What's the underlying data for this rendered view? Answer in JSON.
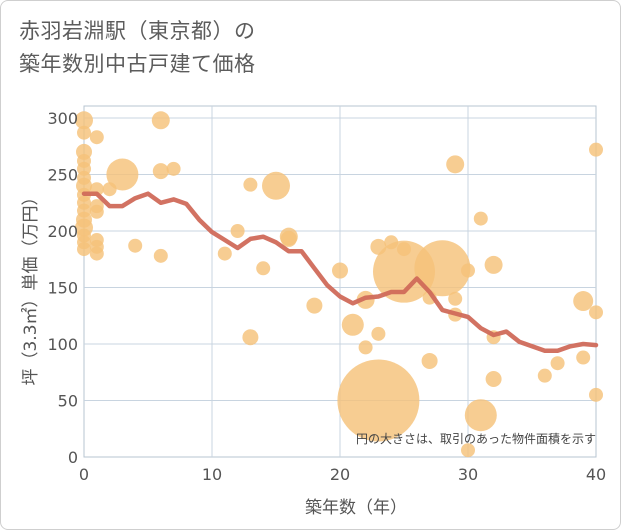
{
  "title": {
    "line1": "赤羽岩淵駅（東京都）の",
    "line2": "築年数別中古戸建て価格"
  },
  "colors": {
    "bubble": "#f5c27a",
    "line": "#d06a5a",
    "grid": "#c8d4e0",
    "plot_border": "#b7c4d1"
  },
  "chart_data": {
    "type": "scatter",
    "title": "赤羽岩淵駅（東京都）の築年数別中古戸建て価格",
    "xlabel": "築年数（年）",
    "ylabel": "坪（3.3㎡）単価（万円）",
    "xlim": [
      0,
      40
    ],
    "ylim": [
      0,
      310
    ],
    "x_ticks": [
      0,
      10,
      20,
      30,
      40
    ],
    "y_ticks": [
      0,
      50,
      100,
      150,
      200,
      250,
      300
    ],
    "grid": true,
    "note": "円の大きさは、取引のあった物件面積を示す",
    "series": [
      {
        "type": "bubble",
        "points": [
          {
            "x": 0,
            "y": 298,
            "s": 9
          },
          {
            "x": 0,
            "y": 287,
            "s": 7
          },
          {
            "x": 0,
            "y": 270,
            "s": 8
          },
          {
            "x": 0,
            "y": 262,
            "s": 7
          },
          {
            "x": 0,
            "y": 255,
            "s": 7
          },
          {
            "x": 0,
            "y": 247,
            "s": 7
          },
          {
            "x": 0,
            "y": 240,
            "s": 8
          },
          {
            "x": 0,
            "y": 232,
            "s": 7
          },
          {
            "x": 0,
            "y": 225,
            "s": 7
          },
          {
            "x": 0,
            "y": 218,
            "s": 7
          },
          {
            "x": 0,
            "y": 210,
            "s": 8
          },
          {
            "x": 0,
            "y": 203,
            "s": 9
          },
          {
            "x": 0,
            "y": 196,
            "s": 7
          },
          {
            "x": 0,
            "y": 190,
            "s": 7
          },
          {
            "x": 0,
            "y": 184,
            "s": 7
          },
          {
            "x": 1,
            "y": 283,
            "s": 7
          },
          {
            "x": 1,
            "y": 237,
            "s": 7
          },
          {
            "x": 1,
            "y": 222,
            "s": 7
          },
          {
            "x": 1,
            "y": 217,
            "s": 7
          },
          {
            "x": 1,
            "y": 192,
            "s": 7
          },
          {
            "x": 1,
            "y": 186,
            "s": 7
          },
          {
            "x": 1,
            "y": 180,
            "s": 7
          },
          {
            "x": 2,
            "y": 237,
            "s": 7
          },
          {
            "x": 3,
            "y": 250,
            "s": 16
          },
          {
            "x": 4,
            "y": 187,
            "s": 7
          },
          {
            "x": 6,
            "y": 298,
            "s": 9
          },
          {
            "x": 6,
            "y": 253,
            "s": 8
          },
          {
            "x": 6,
            "y": 178,
            "s": 7
          },
          {
            "x": 7,
            "y": 255,
            "s": 7
          },
          {
            "x": 11,
            "y": 180,
            "s": 7
          },
          {
            "x": 12,
            "y": 200,
            "s": 7
          },
          {
            "x": 13,
            "y": 241,
            "s": 7
          },
          {
            "x": 13,
            "y": 106,
            "s": 8
          },
          {
            "x": 14,
            "y": 167,
            "s": 7
          },
          {
            "x": 15,
            "y": 240,
            "s": 14
          },
          {
            "x": 16,
            "y": 195,
            "s": 9
          },
          {
            "x": 16,
            "y": 193,
            "s": 8
          },
          {
            "x": 18,
            "y": 134,
            "s": 8
          },
          {
            "x": 20,
            "y": 165,
            "s": 8
          },
          {
            "x": 21,
            "y": 117,
            "s": 11
          },
          {
            "x": 22,
            "y": 97,
            "s": 7
          },
          {
            "x": 22,
            "y": 139,
            "s": 9
          },
          {
            "x": 23,
            "y": 50,
            "s": 41
          },
          {
            "x": 23,
            "y": 109,
            "s": 7
          },
          {
            "x": 23,
            "y": 186,
            "s": 8
          },
          {
            "x": 24,
            "y": 190,
            "s": 7
          },
          {
            "x": 25,
            "y": 164,
            "s": 31
          },
          {
            "x": 25,
            "y": 184,
            "s": 7
          },
          {
            "x": 27,
            "y": 85,
            "s": 8
          },
          {
            "x": 27,
            "y": 141,
            "s": 7
          },
          {
            "x": 28,
            "y": 167,
            "s": 28
          },
          {
            "x": 29,
            "y": 259,
            "s": 9
          },
          {
            "x": 29,
            "y": 140,
            "s": 7
          },
          {
            "x": 29,
            "y": 126,
            "s": 7
          },
          {
            "x": 30,
            "y": 165,
            "s": 7
          },
          {
            "x": 30,
            "y": 6,
            "s": 7
          },
          {
            "x": 31,
            "y": 37,
            "s": 16
          },
          {
            "x": 31,
            "y": 211,
            "s": 7
          },
          {
            "x": 32,
            "y": 170,
            "s": 9
          },
          {
            "x": 32,
            "y": 106,
            "s": 7
          },
          {
            "x": 32,
            "y": 69,
            "s": 8
          },
          {
            "x": 36,
            "y": 72,
            "s": 7
          },
          {
            "x": 37,
            "y": 83,
            "s": 7
          },
          {
            "x": 39,
            "y": 138,
            "s": 10
          },
          {
            "x": 39,
            "y": 88,
            "s": 7
          },
          {
            "x": 40,
            "y": 272,
            "s": 7
          },
          {
            "x": 40,
            "y": 128,
            "s": 7
          },
          {
            "x": 40,
            "y": 55,
            "s": 7
          }
        ]
      },
      {
        "type": "line",
        "points": [
          [
            0,
            233
          ],
          [
            1,
            233
          ],
          [
            2,
            222
          ],
          [
            3,
            222
          ],
          [
            4,
            229
          ],
          [
            5,
            233
          ],
          [
            6,
            225
          ],
          [
            7,
            228
          ],
          [
            8,
            224
          ],
          [
            9,
            210
          ],
          [
            10,
            199
          ],
          [
            11,
            192
          ],
          [
            12,
            185
          ],
          [
            13,
            193
          ],
          [
            14,
            195
          ],
          [
            15,
            190
          ],
          [
            16,
            182
          ],
          [
            17,
            182
          ],
          [
            18,
            167
          ],
          [
            19,
            152
          ],
          [
            20,
            142
          ],
          [
            21,
            136
          ],
          [
            22,
            141
          ],
          [
            23,
            142
          ],
          [
            24,
            146
          ],
          [
            25,
            146
          ],
          [
            26,
            158
          ],
          [
            27,
            146
          ],
          [
            28,
            130
          ],
          [
            29,
            127
          ],
          [
            30,
            124
          ],
          [
            31,
            114
          ],
          [
            32,
            108
          ],
          [
            33,
            111
          ],
          [
            34,
            102
          ],
          [
            35,
            98
          ],
          [
            36,
            94
          ],
          [
            37,
            94
          ],
          [
            38,
            98
          ],
          [
            39,
            100
          ],
          [
            40,
            99
          ]
        ]
      }
    ]
  }
}
